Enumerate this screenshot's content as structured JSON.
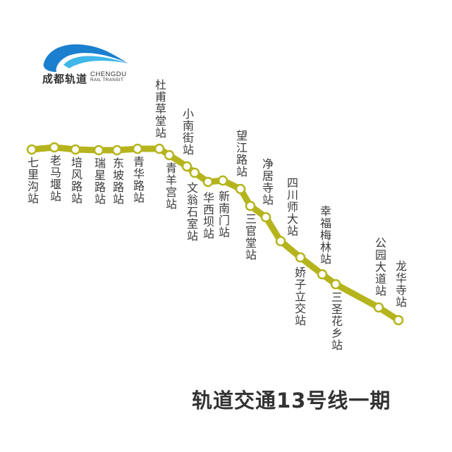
{
  "logo": {
    "name_cn": "成都轨道",
    "name_en_line1": "CHENGDU",
    "name_en_line2": "RAIL TRANSIT",
    "color": "#1a7fcf"
  },
  "title": "轨道交通13号线一期",
  "line_color": "#b5b41c",
  "stations": [
    {
      "name": "七里沟站",
      "label": "below"
    },
    {
      "name": "老马堰站",
      "label": "below"
    },
    {
      "name": "培风路站",
      "label": "below"
    },
    {
      "name": "瑞星路站",
      "label": "below"
    },
    {
      "name": "东坡路站",
      "label": "below"
    },
    {
      "name": "青华路站",
      "label": "below"
    },
    {
      "name": "杜甫草堂站",
      "label": "above"
    },
    {
      "name": "青羊宫站",
      "label": "below"
    },
    {
      "name": "小南街站",
      "label": "above"
    },
    {
      "name": "文翁石室站",
      "label": "below"
    },
    {
      "name": "华西坝站",
      "label": "below"
    },
    {
      "name": "新南门站",
      "label": "below"
    },
    {
      "name": "望江路站",
      "label": "above"
    },
    {
      "name": "三官堂站",
      "label": "below"
    },
    {
      "name": "净居寺站",
      "label": "above"
    },
    {
      "name": "四川师大站",
      "label": "above"
    },
    {
      "name": "娇子立交站",
      "label": "below"
    },
    {
      "name": "幸福梅林站",
      "label": "above"
    },
    {
      "name": "三圣花乡站",
      "label": "below"
    },
    {
      "name": "公园大道站",
      "label": "above"
    },
    {
      "name": "龙华寺站",
      "label": "above"
    }
  ]
}
